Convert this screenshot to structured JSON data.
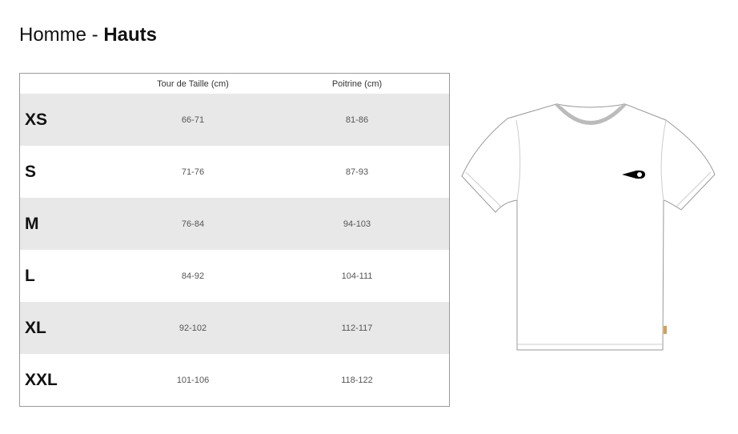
{
  "title": {
    "prefix": "Homme - ",
    "bold": "Hauts"
  },
  "table": {
    "headers": [
      "",
      "Tour de Taille (cm)",
      "Poitrine (cm)"
    ],
    "rows": [
      {
        "size": "XS",
        "waist": "66-71",
        "chest": "81-86"
      },
      {
        "size": "S",
        "waist": "71-76",
        "chest": "87-93"
      },
      {
        "size": "M",
        "waist": "76-84",
        "chest": "94-103"
      },
      {
        "size": "L",
        "waist": "84-92",
        "chest": "104-111"
      },
      {
        "size": "XL",
        "waist": "92-102",
        "chest": "112-117"
      },
      {
        "size": "XXL",
        "waist": "101-106",
        "chest": "118-122"
      }
    ],
    "shade_color": "#e8e8e8"
  },
  "illustration": {
    "type": "t-shirt-flat-sketch",
    "logo": "comet-logo"
  }
}
